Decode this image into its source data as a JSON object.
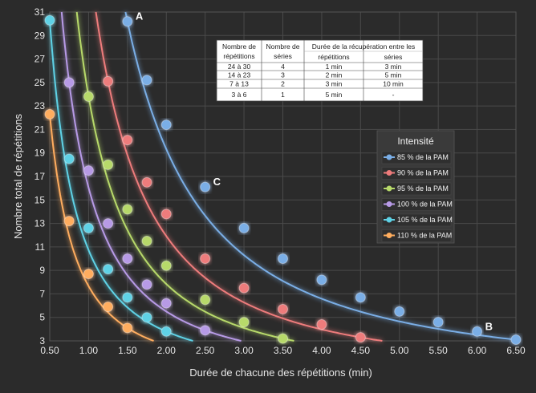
{
  "chart_data": {
    "type": "line",
    "xlabel": "Durée de chacune des répétitions (min)",
    "ylabel": "Nombre total de répétitions",
    "xlim": [
      0.5,
      6.5
    ],
    "ylim": [
      3,
      31
    ],
    "x_ticks": [
      "0.50",
      "1.00",
      "1.50",
      "2.00",
      "2.50",
      "3.00",
      "3.50",
      "4.00",
      "4.50",
      "5.00",
      "5.50",
      "6.00",
      "6.50"
    ],
    "y_ticks": [
      "3",
      "5",
      "7",
      "9",
      "11",
      "13",
      "15",
      "17",
      "19",
      "21",
      "23",
      "25",
      "27",
      "29",
      "31"
    ],
    "grid": true,
    "legend_title": "Intensité",
    "legend_position": "right",
    "series": [
      {
        "name": "85 % de la PAM",
        "color": "#7aaee6",
        "points": [
          [
            1.5,
            30.2
          ],
          [
            1.75,
            25.2
          ],
          [
            2.0,
            21.4
          ],
          [
            2.5,
            16.1
          ],
          [
            3.0,
            12.6
          ],
          [
            3.5,
            10.0
          ],
          [
            4.0,
            8.2
          ],
          [
            4.5,
            6.7
          ],
          [
            5.0,
            5.5
          ],
          [
            5.5,
            4.6
          ],
          [
            6.0,
            3.8
          ],
          [
            6.5,
            3.1
          ]
        ]
      },
      {
        "name": "90 % de la PAM",
        "color": "#ee7b7b",
        "points": [
          [
            1.25,
            25.1
          ],
          [
            1.5,
            20.1
          ],
          [
            1.75,
            16.5
          ],
          [
            2.0,
            13.8
          ],
          [
            2.5,
            10.0
          ],
          [
            3.0,
            7.5
          ],
          [
            3.5,
            5.7
          ],
          [
            4.0,
            4.4
          ],
          [
            4.5,
            3.3
          ]
        ]
      },
      {
        "name": "95 % de la PAM",
        "color": "#b7d96a",
        "points": [
          [
            1.0,
            23.8
          ],
          [
            1.25,
            18.0
          ],
          [
            1.5,
            14.2
          ],
          [
            1.75,
            11.5
          ],
          [
            2.0,
            9.4
          ],
          [
            2.5,
            6.5
          ],
          [
            3.0,
            4.6
          ],
          [
            3.5,
            3.2
          ]
        ]
      },
      {
        "name": "100 % de la PAM",
        "color": "#b79ae6",
        "points": [
          [
            0.75,
            25.0
          ],
          [
            1.0,
            17.5
          ],
          [
            1.25,
            13.0
          ],
          [
            1.5,
            10.0
          ],
          [
            1.75,
            7.8
          ],
          [
            2.0,
            6.2
          ],
          [
            2.5,
            3.9
          ]
        ]
      },
      {
        "name": "105 % de la PAM",
        "color": "#5ed2e6",
        "points": [
          [
            0.5,
            30.3
          ],
          [
            0.75,
            18.5
          ],
          [
            1.0,
            12.6
          ],
          [
            1.25,
            9.1
          ],
          [
            1.5,
            6.7
          ],
          [
            1.75,
            5.0
          ],
          [
            2.0,
            3.8
          ]
        ]
      },
      {
        "name": "110 % de la PAM",
        "color": "#ffad5e",
        "points": [
          [
            0.5,
            22.3
          ],
          [
            0.75,
            13.2
          ],
          [
            1.0,
            8.7
          ],
          [
            1.25,
            5.9
          ],
          [
            1.5,
            4.1
          ]
        ]
      }
    ],
    "annotations": [
      {
        "text": "A",
        "x": 1.5,
        "y": 30.2
      },
      {
        "text": "C",
        "x": 2.5,
        "y": 16.1
      },
      {
        "text": "B",
        "x": 6.0,
        "y": 3.8
      }
    ],
    "table": {
      "headers": [
        "Nombre de répétitions",
        "Nombre de séries",
        "Durée de la récupération entre les répétitions",
        "Durée de la récupération entre les séries"
      ],
      "header_lines": [
        [
          "Nombre de",
          "répétitions"
        ],
        [
          "Nombre de",
          "séries"
        ],
        [
          "répétitions"
        ],
        [
          "séries"
        ]
      ],
      "header_span": "Durée de la récupération entre les",
      "rows": [
        [
          "24 à 30",
          "4",
          "1 min",
          "3 min"
        ],
        [
          "14 à 23",
          "3",
          "2 min",
          "5 min"
        ],
        [
          "7 à 13",
          "2",
          "3 min",
          "10 min"
        ],
        [
          "3 à 6",
          "1",
          "5 min",
          "-"
        ]
      ]
    }
  }
}
